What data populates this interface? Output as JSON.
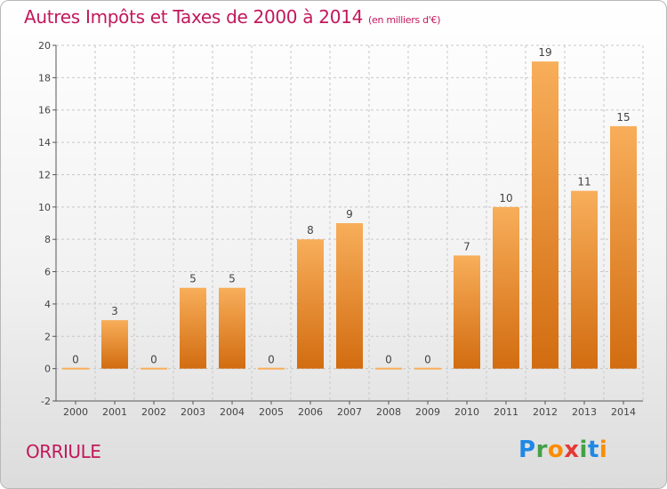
{
  "title": {
    "main": "Autres Impôts et Taxes de 2000 à 2014",
    "unit": "(en milliers d'€)"
  },
  "commune": "ORRIULE",
  "logo": {
    "text": "Proxiti",
    "letters": [
      "P",
      "r",
      "o",
      "x",
      "i",
      "t",
      "i"
    ],
    "colors": [
      "#1e88e5",
      "#43a047",
      "#fb8c00",
      "#e53935",
      "#43a047",
      "#1e88e5",
      "#fb8c00"
    ]
  },
  "colors": {
    "title": "#c2185b",
    "bar_top": "#f8ae5a",
    "bar_bottom": "#d26c10",
    "grid": "#c8c8c8",
    "axis": "#555555",
    "label": "#444444"
  },
  "chart_data": {
    "type": "bar",
    "categories": [
      "2000",
      "2001",
      "2002",
      "2003",
      "2004",
      "2005",
      "2006",
      "2007",
      "2008",
      "2009",
      "2010",
      "2011",
      "2012",
      "2013",
      "2014"
    ],
    "values": [
      0,
      3,
      0,
      5,
      5,
      0,
      8,
      9,
      0,
      0,
      7,
      10,
      19,
      11,
      15
    ],
    "ylim": [
      -2,
      20
    ],
    "yticks": [
      -2,
      0,
      2,
      4,
      6,
      8,
      10,
      12,
      14,
      16,
      18,
      20
    ],
    "grid": true,
    "grid_style": "dashed"
  }
}
